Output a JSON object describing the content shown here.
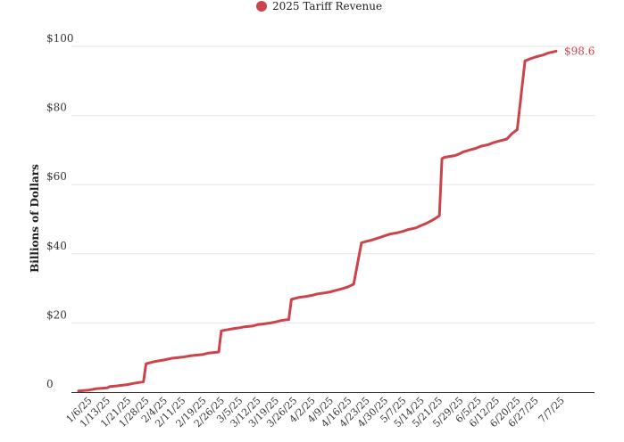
{
  "chart_data": {
    "type": "line",
    "ylabel": "Billions of Dollars",
    "ylim": [
      0,
      100
    ],
    "yticks": [
      {
        "value": 0,
        "label": "0"
      },
      {
        "value": 20,
        "label": "$20"
      },
      {
        "value": 40,
        "label": "$40"
      },
      {
        "value": 60,
        "label": "$60"
      },
      {
        "value": 80,
        "label": "$80"
      },
      {
        "value": 100,
        "label": "$100"
      }
    ],
    "xticks": [
      "1/6/25",
      "1/13/25",
      "1/21/25",
      "1/28/25",
      "2/4/25",
      "2/11/25",
      "2/19/25",
      "2/26/25",
      "3/5/25",
      "3/12/25",
      "3/19/25",
      "3/26/25",
      "4/2/25",
      "4/9/25",
      "4/16/25",
      "4/23/25",
      "4/30/25",
      "5/7/25",
      "5/14/25",
      "5/21/25",
      "5/29/25",
      "6/5/25",
      "6/12/25",
      "6/20/25",
      "6/27/25",
      "7/7/25"
    ],
    "grid": true,
    "legend_position": "top-center",
    "series": [
      {
        "name": "2025 Tariff Revenue",
        "color": "#cc444b",
        "end_label": "$98.6",
        "points": [
          [
            "1/2/25",
            0.3
          ],
          [
            "1/6/25",
            0.6
          ],
          [
            "1/9/25",
            1.0
          ],
          [
            "1/13/25",
            1.2
          ],
          [
            "1/14/25",
            1.6
          ],
          [
            "1/17/25",
            1.8
          ],
          [
            "1/21/25",
            2.2
          ],
          [
            "1/23/25",
            2.5
          ],
          [
            "1/27/25",
            3.0
          ],
          [
            "1/28/25",
            8.2
          ],
          [
            "1/31/25",
            8.8
          ],
          [
            "2/4/25",
            9.3
          ],
          [
            "2/7/25",
            9.8
          ],
          [
            "2/11/25",
            10.1
          ],
          [
            "2/14/25",
            10.5
          ],
          [
            "2/19/25",
            10.9
          ],
          [
            "2/21/25",
            11.3
          ],
          [
            "2/25/25",
            11.6
          ],
          [
            "2/26/25",
            17.7
          ],
          [
            "2/28/25",
            18.0
          ],
          [
            "3/3/25",
            18.4
          ],
          [
            "3/5/25",
            18.6
          ],
          [
            "3/7/25",
            18.9
          ],
          [
            "3/10/25",
            19.1
          ],
          [
            "3/12/25",
            19.5
          ],
          [
            "3/14/25",
            19.7
          ],
          [
            "3/17/25",
            20.0
          ],
          [
            "3/19/25",
            20.3
          ],
          [
            "3/21/25",
            20.7
          ],
          [
            "3/24/25",
            21.0
          ],
          [
            "3/25/25",
            26.8
          ],
          [
            "3/26/25",
            27.0
          ],
          [
            "3/28/25",
            27.4
          ],
          [
            "3/31/25",
            27.7
          ],
          [
            "4/2/25",
            28.0
          ],
          [
            "4/4/25",
            28.4
          ],
          [
            "4/7/25",
            28.7
          ],
          [
            "4/9/25",
            29.0
          ],
          [
            "4/11/25",
            29.4
          ],
          [
            "4/14/25",
            30.0
          ],
          [
            "4/16/25",
            30.5
          ],
          [
            "4/18/25",
            31.2
          ],
          [
            "4/21/25",
            43.2
          ],
          [
            "4/23/25",
            43.6
          ],
          [
            "4/25/25",
            44.0
          ],
          [
            "4/28/25",
            44.7
          ],
          [
            "4/30/25",
            45.2
          ],
          [
            "5/2/25",
            45.7
          ],
          [
            "5/5/25",
            46.1
          ],
          [
            "5/7/25",
            46.5
          ],
          [
            "5/9/25",
            47.0
          ],
          [
            "5/12/25",
            47.5
          ],
          [
            "5/14/25",
            48.2
          ],
          [
            "5/16/25",
            48.8
          ],
          [
            "5/19/25",
            50.0
          ],
          [
            "5/21/25",
            51.0
          ],
          [
            "5/22/25",
            67.5
          ],
          [
            "5/23/25",
            67.9
          ],
          [
            "5/27/25",
            68.4
          ],
          [
            "5/29/25",
            69.0
          ],
          [
            "5/30/25",
            69.4
          ],
          [
            "6/2/25",
            70.1
          ],
          [
            "6/4/25",
            70.5
          ],
          [
            "6/6/25",
            71.1
          ],
          [
            "6/9/25",
            71.6
          ],
          [
            "6/11/25",
            72.2
          ],
          [
            "6/13/25",
            72.6
          ],
          [
            "6/16/25",
            73.2
          ],
          [
            "6/18/25",
            74.8
          ],
          [
            "6/20/25",
            75.9
          ],
          [
            "6/23/25",
            95.8
          ],
          [
            "6/25/25",
            96.4
          ],
          [
            "6/27/25",
            96.9
          ],
          [
            "6/30/25",
            97.5
          ],
          [
            "7/2/25",
            98.1
          ],
          [
            "7/5/25",
            98.6
          ]
        ]
      }
    ]
  }
}
